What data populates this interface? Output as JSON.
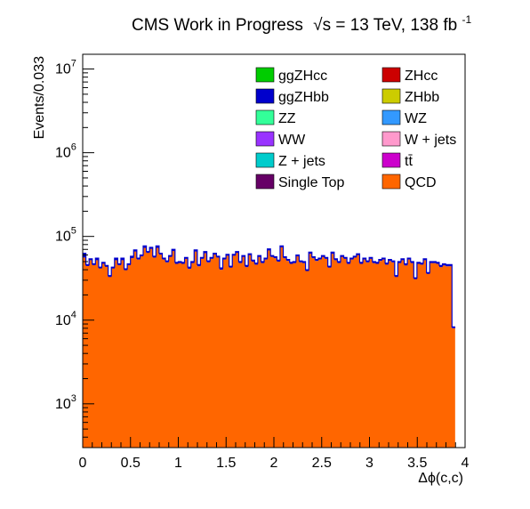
{
  "header": {
    "title_main": "CMS Work in Progress",
    "title_energy_sqrt": "√s",
    "title_energy_rest": " = 13 TeV, 138 fb",
    "title_lumi_exp": "-1"
  },
  "chart_data": {
    "type": "histogram",
    "xlabel": "Δϕ(c,c)",
    "ylabel": "Events/0.033",
    "x_range": [
      0,
      4
    ],
    "y_range": [
      300,
      15000000
    ],
    "y_scale": "log",
    "bin_width": 0.0333,
    "grid": false,
    "legend_position": "top-right",
    "x_ticks": [
      {
        "value": 0,
        "label": "0"
      },
      {
        "value": 0.5,
        "label": "0.5"
      },
      {
        "value": 1,
        "label": "1"
      },
      {
        "value": 1.5,
        "label": "1.5"
      },
      {
        "value": 2,
        "label": "2"
      },
      {
        "value": 2.5,
        "label": "2.5"
      },
      {
        "value": 3,
        "label": "3"
      },
      {
        "value": 3.5,
        "label": "3.5"
      },
      {
        "value": 4,
        "label": "4"
      }
    ],
    "y_ticks": [
      {
        "value": 1000,
        "base": "10",
        "exp": "3"
      },
      {
        "value": 10000,
        "base": "10",
        "exp": "4"
      },
      {
        "value": 100000,
        "base": "10",
        "exp": "5"
      },
      {
        "value": 1000000,
        "base": "10",
        "exp": "6"
      },
      {
        "value": 10000000,
        "base": "10",
        "exp": "7"
      }
    ],
    "legend": [
      {
        "name": "ggZHcc",
        "color": "#00cc00"
      },
      {
        "name": "ZHcc",
        "color": "#cc0000"
      },
      {
        "name": "ggZHbb",
        "color": "#0000cc"
      },
      {
        "name": "ZHbb",
        "color": "#cccc00"
      },
      {
        "name": "ZZ",
        "color": "#33ff99"
      },
      {
        "name": "WZ",
        "color": "#3399ff"
      },
      {
        "name": "WW",
        "color": "#9933ff"
      },
      {
        "name": "W + jets",
        "color": "#ff99cc"
      },
      {
        "name": "Z + jets",
        "color": "#00cccc"
      },
      {
        "name": "tt̄",
        "color": "#cc00cc"
      },
      {
        "name": "Single Top",
        "color": "#660066"
      },
      {
        "name": "QCD",
        "color": "#ff6600"
      }
    ],
    "series": [
      {
        "name": "QCD",
        "color": "#ff6600",
        "values": [
          56000,
          45000,
          52000,
          46000,
          52000,
          42000,
          48000,
          44000,
          33000,
          42000,
          52000,
          46000,
          52000,
          40000,
          46000,
          55000,
          66000,
          53000,
          58000,
          73000,
          64000,
          71000,
          56000,
          73000,
          61000,
          53000,
          49000,
          57000,
          67000,
          47000,
          48000,
          47000,
          54000,
          41000,
          48000,
          66000,
          44000,
          54000,
          63000,
          49000,
          54000,
          61000,
          56000,
          40000,
          53000,
          59000,
          43000,
          59000,
          64000,
          48000,
          57000,
          43000,
          60000,
          50000,
          46000,
          57000,
          48000,
          53000,
          68000,
          57000,
          55000,
          50000,
          74000,
          55000,
          51000,
          47000,
          48000,
          58000,
          49000,
          48000,
          39000,
          62000,
          55000,
          51000,
          53000,
          57000,
          54000,
          43000,
          62000,
          52000,
          48000,
          57000,
          54000,
          47000,
          53000,
          56000,
          60000,
          47000,
          53000,
          49000,
          54000,
          48000,
          47000,
          51000,
          53000,
          46000,
          51000,
          49000,
          33000,
          48000,
          52000,
          45000,
          53000,
          48000,
          31000,
          47000,
          46000,
          52000,
          36000,
          48000,
          48000,
          47000,
          43000,
          45000,
          44000,
          44000,
          8000
        ]
      },
      {
        "name": "ggZHbb",
        "color": "#0000cc",
        "values": [
          63000,
          46000,
          54000,
          47000,
          55000,
          43000,
          49000,
          45000,
          34000,
          43000,
          55000,
          47000,
          55000,
          41000,
          47000,
          58000,
          69000,
          55000,
          60000,
          77000,
          66000,
          74000,
          58000,
          77000,
          63000,
          55000,
          51000,
          59000,
          70000,
          49000,
          50000,
          49000,
          56000,
          43000,
          50000,
          69000,
          46000,
          56000,
          66000,
          51000,
          56000,
          63000,
          58000,
          42000,
          55000,
          61000,
          44000,
          61000,
          66000,
          50000,
          59000,
          45000,
          62000,
          52000,
          48000,
          59000,
          50000,
          55000,
          71000,
          59000,
          57000,
          52000,
          77000,
          57000,
          53000,
          49000,
          50000,
          60000,
          51000,
          50000,
          40000,
          65000,
          57000,
          53000,
          55000,
          59000,
          56000,
          44000,
          65000,
          54000,
          50000,
          59000,
          56000,
          49000,
          55000,
          58000,
          62000,
          49000,
          55000,
          51000,
          56000,
          50000,
          49000,
          53000,
          55000,
          48000,
          53000,
          51000,
          34000,
          50000,
          54000,
          47000,
          55000,
          50000,
          32000,
          49000,
          48000,
          54000,
          37000,
          50000,
          50000,
          49000,
          45000,
          47000,
          46000,
          46000,
          8300
        ]
      }
    ]
  }
}
